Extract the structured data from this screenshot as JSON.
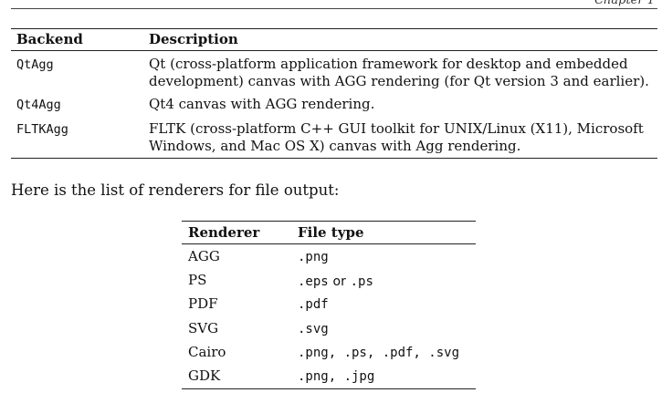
{
  "page": {
    "chapter_label": "Chapter 1"
  },
  "backend_table": {
    "header": {
      "backend": "Backend",
      "description": "Description"
    },
    "rows": [
      {
        "backend": "QtAgg",
        "description_lines": [
          "Qt (cross-platform application framework for desktop and embedded",
          "development) canvas with AGG rendering (for Qt version 3 and earlier)."
        ]
      },
      {
        "backend": "Qt4Agg",
        "description_lines": [
          "Qt4 canvas with AGG rendering."
        ]
      },
      {
        "backend": "FLTKAgg",
        "description_lines": [
          "FLTK (cross-platform C++ GUI toolkit for UNIX/Linux (X11), Microsoft",
          "Windows, and Mac OS X) canvas with Agg rendering."
        ]
      }
    ]
  },
  "intro_text": "Here is the list of renderers for file output:",
  "renderer_table": {
    "header": {
      "renderer": "Renderer",
      "file_type": "File type"
    },
    "rows": [
      {
        "renderer": "AGG",
        "file_type": ".png"
      },
      {
        "renderer": "PS",
        "file_type_a": ".eps",
        "file_type_sep": "or",
        "file_type_b": ".ps"
      },
      {
        "renderer": "PDF",
        "file_type": ".pdf"
      },
      {
        "renderer": "SVG",
        "file_type": ".svg"
      },
      {
        "renderer": "Cairo",
        "file_type": ".png, .ps, .pdf, .svg"
      },
      {
        "renderer": "GDK",
        "file_type": ".png, .jpg"
      }
    ]
  }
}
